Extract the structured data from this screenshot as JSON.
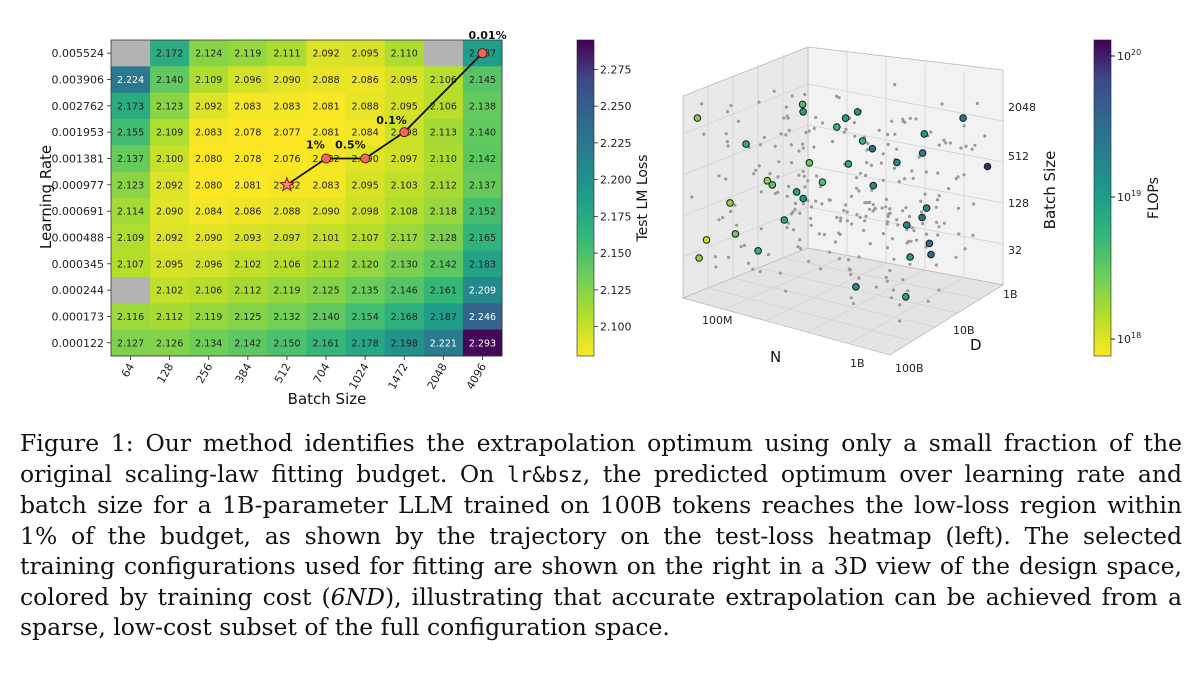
{
  "figure": {
    "heatmap": {
      "ylabel": "Learning Rate",
      "xlabel": "Batch Size",
      "colorbar_label": "Test LM Loss",
      "colorbar_ticks": [
        "2.275",
        "2.250",
        "2.225",
        "2.200",
        "2.175",
        "2.150",
        "2.125",
        "2.100"
      ],
      "trajectory_labels": [
        "0.01%",
        "0.1%",
        "0.5%",
        "1%"
      ]
    },
    "scatter3d": {
      "axis_n": "N",
      "axis_d": "D",
      "axis_bs": "Batch Size",
      "n_ticks": [
        "100M",
        "1B"
      ],
      "d_ticks": [
        "10B",
        "100B",
        "1B"
      ],
      "bs_ticks": [
        "2048",
        "512",
        "128",
        "32"
      ],
      "colorbar_label": "FLOPs",
      "colorbar_ticks": [
        {
          "base": "10",
          "exp": "20"
        },
        {
          "base": "10",
          "exp": "19"
        },
        {
          "base": "10",
          "exp": "18"
        }
      ]
    }
  },
  "chart_data": [
    {
      "type": "heatmap",
      "x_categories": [
        "64",
        "128",
        "256",
        "384",
        "512",
        "704",
        "1024",
        "1472",
        "2048",
        "4096"
      ],
      "y_categories": [
        "0.005524",
        "0.003906",
        "0.002762",
        "0.001953",
        "0.001381",
        "0.000977",
        "0.000691",
        "0.000488",
        "0.000345",
        "0.000244",
        "0.000173",
        "0.000122"
      ],
      "values": [
        [
          null,
          2.172,
          2.124,
          2.119,
          2.111,
          2.092,
          2.095,
          2.11,
          null,
          2.187
        ],
        [
          2.224,
          2.14,
          2.109,
          2.096,
          2.09,
          2.088,
          2.086,
          2.095,
          2.106,
          2.145
        ],
        [
          2.173,
          2.123,
          2.092,
          2.083,
          2.083,
          2.081,
          2.088,
          2.095,
          2.106,
          2.138
        ],
        [
          2.155,
          2.109,
          2.083,
          2.078,
          2.077,
          2.081,
          2.084,
          2.098,
          2.113,
          2.14
        ],
        [
          2.137,
          2.1,
          2.08,
          2.078,
          2.076,
          2.082,
          2.09,
          2.097,
          2.11,
          2.142
        ],
        [
          2.123,
          2.092,
          2.08,
          2.081,
          2.082,
          2.083,
          2.095,
          2.103,
          2.112,
          2.137
        ],
        [
          2.114,
          2.09,
          2.084,
          2.086,
          2.088,
          2.09,
          2.098,
          2.108,
          2.118,
          2.152
        ],
        [
          2.109,
          2.092,
          2.09,
          2.093,
          2.097,
          2.101,
          2.107,
          2.117,
          2.128,
          2.165
        ],
        [
          2.107,
          2.095,
          2.096,
          2.102,
          2.106,
          2.112,
          2.12,
          2.13,
          2.142,
          2.183
        ],
        [
          null,
          2.102,
          2.106,
          2.112,
          2.119,
          2.125,
          2.135,
          2.146,
          2.161,
          2.209
        ],
        [
          2.116,
          2.112,
          2.119,
          2.125,
          2.132,
          2.14,
          2.154,
          2.168,
          2.187,
          2.246
        ],
        [
          2.127,
          2.126,
          2.134,
          2.142,
          2.15,
          2.161,
          2.178,
          2.198,
          2.221,
          2.293
        ]
      ],
      "color_range": [
        2.08,
        2.295
      ],
      "colormap": "viridis_r",
      "trajectory": [
        {
          "label": "0.01%",
          "x": "4096",
          "y": "0.005524"
        },
        {
          "label": "0.1%",
          "x": "1472",
          "y": "0.001953"
        },
        {
          "label": "0.5%",
          "x": "1024",
          "y": "0.001381"
        },
        {
          "label": "1%",
          "x": "704",
          "y": "0.001381"
        },
        {
          "label": "",
          "x": "512",
          "y": "0.000977"
        }
      ]
    },
    {
      "type": "scatter",
      "subtype": "3d",
      "axes": [
        "N",
        "D",
        "Batch Size"
      ],
      "color_scale": "FLOPs (log)",
      "background_points": 260,
      "selected_points": 36
    }
  ],
  "caption": {
    "part1": "Figure 1: Our method identifies the extrapolation optimum using only a small fraction of the original scaling-law fitting budget. On ",
    "mono": "lr&bsz",
    "part2": ", the predicted optimum over learning rate and batch size for a 1B-parameter LLM trained on 100B tokens reaches the low-loss region within 1% of the budget, as shown by the trajectory on the test-loss heatmap (left). The selected training configurations used for fitting are shown on the right in a 3D view of the design space, colored by training cost (",
    "ital": "6ND",
    "part3": "), illustrating that accurate extrapolation can be achieved from a sparse, low-cost subset of the full configuration space."
  }
}
